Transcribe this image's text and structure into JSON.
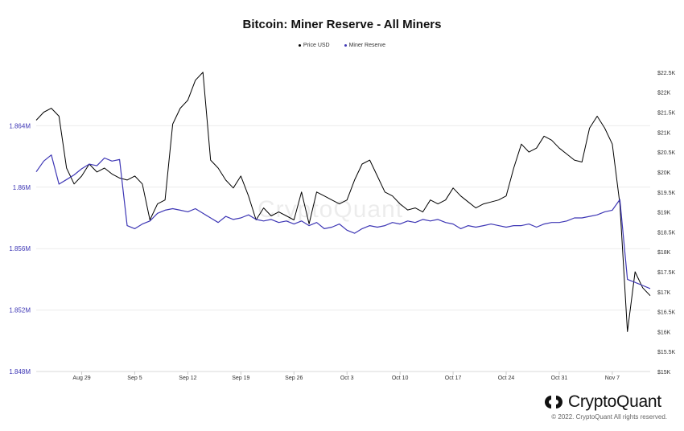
{
  "chart_data": {
    "type": "line",
    "title": "Bitcoin: Miner Reserve - All Miners",
    "x_labels": [
      "Aug 29",
      "Sep 5",
      "Sep 12",
      "Sep 19",
      "Sep 26",
      "Oct 3",
      "Oct 10",
      "Oct 17",
      "Oct 24",
      "Oct 31",
      "Nov 7"
    ],
    "left_axis": {
      "label": "",
      "ticks": [
        "1.848M",
        "1.852M",
        "1.856M",
        "1.86M",
        "1.864M"
      ],
      "tick_values": [
        1848000,
        1852000,
        1856000,
        1860000,
        1864000
      ],
      "range": [
        1848000,
        1868000
      ]
    },
    "right_axis": {
      "label": "",
      "ticks": [
        "$15K",
        "$15.5K",
        "$16K",
        "$16.5K",
        "$17K",
        "$17.5K",
        "$18K",
        "$18.5K",
        "$19K",
        "$19.5K",
        "$20K",
        "$20.5K",
        "$21K",
        "$21.5K",
        "$22K",
        "$22.5K"
      ],
      "tick_values": [
        15000,
        15500,
        16000,
        16500,
        17000,
        17500,
        18000,
        18500,
        19000,
        19500,
        20000,
        20500,
        21000,
        21500,
        22000,
        22500
      ],
      "range": [
        15000,
        22700
      ]
    },
    "legend_position": "top-center",
    "grid": true,
    "series": [
      {
        "name": "Price USD",
        "axis": "right",
        "color": "#000000",
        "points": [
          [
            "2022-08-23",
            21300
          ],
          [
            "2022-08-24",
            21500
          ],
          [
            "2022-08-25",
            21600
          ],
          [
            "2022-08-26",
            21400
          ],
          [
            "2022-08-27",
            20100
          ],
          [
            "2022-08-28",
            19700
          ],
          [
            "2022-08-29",
            19900
          ],
          [
            "2022-08-30",
            20200
          ],
          [
            "2022-08-31",
            20000
          ],
          [
            "2022-09-01",
            20100
          ],
          [
            "2022-09-02",
            19950
          ],
          [
            "2022-09-03",
            19850
          ],
          [
            "2022-09-04",
            19800
          ],
          [
            "2022-09-05",
            19900
          ],
          [
            "2022-09-06",
            19700
          ],
          [
            "2022-09-07",
            18800
          ],
          [
            "2022-09-08",
            19200
          ],
          [
            "2022-09-09",
            19300
          ],
          [
            "2022-09-10",
            21200
          ],
          [
            "2022-09-11",
            21600
          ],
          [
            "2022-09-12",
            21800
          ],
          [
            "2022-09-13",
            22300
          ],
          [
            "2022-09-14",
            22500
          ],
          [
            "2022-09-15",
            20300
          ],
          [
            "2022-09-16",
            20100
          ],
          [
            "2022-09-17",
            19800
          ],
          [
            "2022-09-18",
            19600
          ],
          [
            "2022-09-19",
            19900
          ],
          [
            "2022-09-20",
            19400
          ],
          [
            "2022-09-21",
            18800
          ],
          [
            "2022-09-22",
            19100
          ],
          [
            "2022-09-23",
            18900
          ],
          [
            "2022-09-24",
            19000
          ],
          [
            "2022-09-25",
            18900
          ],
          [
            "2022-09-26",
            18800
          ],
          [
            "2022-09-27",
            19500
          ],
          [
            "2022-09-28",
            18700
          ],
          [
            "2022-09-29",
            19500
          ],
          [
            "2022-09-30",
            19400
          ],
          [
            "2022-10-01",
            19300
          ],
          [
            "2022-10-02",
            19200
          ],
          [
            "2022-10-03",
            19300
          ],
          [
            "2022-10-04",
            19800
          ],
          [
            "2022-10-05",
            20200
          ],
          [
            "2022-10-06",
            20300
          ],
          [
            "2022-10-07",
            19900
          ],
          [
            "2022-10-08",
            19500
          ],
          [
            "2022-10-09",
            19400
          ],
          [
            "2022-10-10",
            19200
          ],
          [
            "2022-10-11",
            19050
          ],
          [
            "2022-10-12",
            19100
          ],
          [
            "2022-10-13",
            19000
          ],
          [
            "2022-10-14",
            19300
          ],
          [
            "2022-10-15",
            19200
          ],
          [
            "2022-10-16",
            19300
          ],
          [
            "2022-10-17",
            19600
          ],
          [
            "2022-10-18",
            19400
          ],
          [
            "2022-10-19",
            19250
          ],
          [
            "2022-10-20",
            19100
          ],
          [
            "2022-10-21",
            19200
          ],
          [
            "2022-10-22",
            19250
          ],
          [
            "2022-10-23",
            19300
          ],
          [
            "2022-10-24",
            19400
          ],
          [
            "2022-10-25",
            20100
          ],
          [
            "2022-10-26",
            20700
          ],
          [
            "2022-10-27",
            20500
          ],
          [
            "2022-10-28",
            20600
          ],
          [
            "2022-10-29",
            20900
          ],
          [
            "2022-10-30",
            20800
          ],
          [
            "2022-10-31",
            20600
          ],
          [
            "2022-11-01",
            20450
          ],
          [
            "2022-11-02",
            20300
          ],
          [
            "2022-11-03",
            20250
          ],
          [
            "2022-11-04",
            21100
          ],
          [
            "2022-11-05",
            21400
          ],
          [
            "2022-11-06",
            21100
          ],
          [
            "2022-11-07",
            20700
          ],
          [
            "2022-11-08",
            19200
          ],
          [
            "2022-11-09",
            16000
          ],
          [
            "2022-11-10",
            17500
          ],
          [
            "2022-11-11",
            17100
          ],
          [
            "2022-11-12",
            16900
          ]
        ]
      },
      {
        "name": "Miner Reserve",
        "axis": "left",
        "color": "#3e37b5",
        "points": [
          [
            "2022-08-23",
            1861000
          ],
          [
            "2022-08-24",
            1861700
          ],
          [
            "2022-08-25",
            1862100
          ],
          [
            "2022-08-26",
            1860200
          ],
          [
            "2022-08-27",
            1860500
          ],
          [
            "2022-08-28",
            1860800
          ],
          [
            "2022-08-29",
            1861200
          ],
          [
            "2022-08-30",
            1861500
          ],
          [
            "2022-08-31",
            1861400
          ],
          [
            "2022-09-01",
            1861900
          ],
          [
            "2022-09-02",
            1861700
          ],
          [
            "2022-09-03",
            1861800
          ],
          [
            "2022-09-04",
            1857500
          ],
          [
            "2022-09-05",
            1857300
          ],
          [
            "2022-09-06",
            1857600
          ],
          [
            "2022-09-07",
            1857800
          ],
          [
            "2022-09-08",
            1858300
          ],
          [
            "2022-09-09",
            1858500
          ],
          [
            "2022-09-10",
            1858600
          ],
          [
            "2022-09-11",
            1858500
          ],
          [
            "2022-09-12",
            1858400
          ],
          [
            "2022-09-13",
            1858600
          ],
          [
            "2022-09-14",
            1858300
          ],
          [
            "2022-09-15",
            1858000
          ],
          [
            "2022-09-16",
            1857700
          ],
          [
            "2022-09-17",
            1858100
          ],
          [
            "2022-09-18",
            1857900
          ],
          [
            "2022-09-19",
            1858000
          ],
          [
            "2022-09-20",
            1858200
          ],
          [
            "2022-09-21",
            1857900
          ],
          [
            "2022-09-22",
            1857800
          ],
          [
            "2022-09-23",
            1857900
          ],
          [
            "2022-09-24",
            1857700
          ],
          [
            "2022-09-25",
            1857800
          ],
          [
            "2022-09-26",
            1857600
          ],
          [
            "2022-09-27",
            1857800
          ],
          [
            "2022-09-28",
            1857500
          ],
          [
            "2022-09-29",
            1857700
          ],
          [
            "2022-09-30",
            1857300
          ],
          [
            "2022-10-01",
            1857400
          ],
          [
            "2022-10-02",
            1857600
          ],
          [
            "2022-10-03",
            1857200
          ],
          [
            "2022-10-04",
            1857000
          ],
          [
            "2022-10-05",
            1857300
          ],
          [
            "2022-10-06",
            1857500
          ],
          [
            "2022-10-07",
            1857400
          ],
          [
            "2022-10-08",
            1857500
          ],
          [
            "2022-10-09",
            1857700
          ],
          [
            "2022-10-10",
            1857600
          ],
          [
            "2022-10-11",
            1857800
          ],
          [
            "2022-10-12",
            1857700
          ],
          [
            "2022-10-13",
            1857900
          ],
          [
            "2022-10-14",
            1857800
          ],
          [
            "2022-10-15",
            1857900
          ],
          [
            "2022-10-16",
            1857700
          ],
          [
            "2022-10-17",
            1857600
          ],
          [
            "2022-10-18",
            1857300
          ],
          [
            "2022-10-19",
            1857500
          ],
          [
            "2022-10-20",
            1857400
          ],
          [
            "2022-10-21",
            1857500
          ],
          [
            "2022-10-22",
            1857600
          ],
          [
            "2022-10-23",
            1857500
          ],
          [
            "2022-10-24",
            1857400
          ],
          [
            "2022-10-25",
            1857500
          ],
          [
            "2022-10-26",
            1857500
          ],
          [
            "2022-10-27",
            1857600
          ],
          [
            "2022-10-28",
            1857400
          ],
          [
            "2022-10-29",
            1857600
          ],
          [
            "2022-10-30",
            1857700
          ],
          [
            "2022-10-31",
            1857700
          ],
          [
            "2022-11-01",
            1857800
          ],
          [
            "2022-11-02",
            1858000
          ],
          [
            "2022-11-03",
            1858000
          ],
          [
            "2022-11-04",
            1858100
          ],
          [
            "2022-11-05",
            1858200
          ],
          [
            "2022-11-06",
            1858400
          ],
          [
            "2022-11-07",
            1858500
          ],
          [
            "2022-11-08",
            1859200
          ],
          [
            "2022-11-09",
            1854000
          ],
          [
            "2022-11-10",
            1853800
          ],
          [
            "2022-11-11",
            1853600
          ],
          [
            "2022-11-12",
            1853400
          ]
        ]
      }
    ]
  },
  "brand": {
    "name": "CryptoQuant",
    "watermark": "CryptoQuant",
    "copyright": "© 2022. CryptoQuant All rights reserved."
  }
}
